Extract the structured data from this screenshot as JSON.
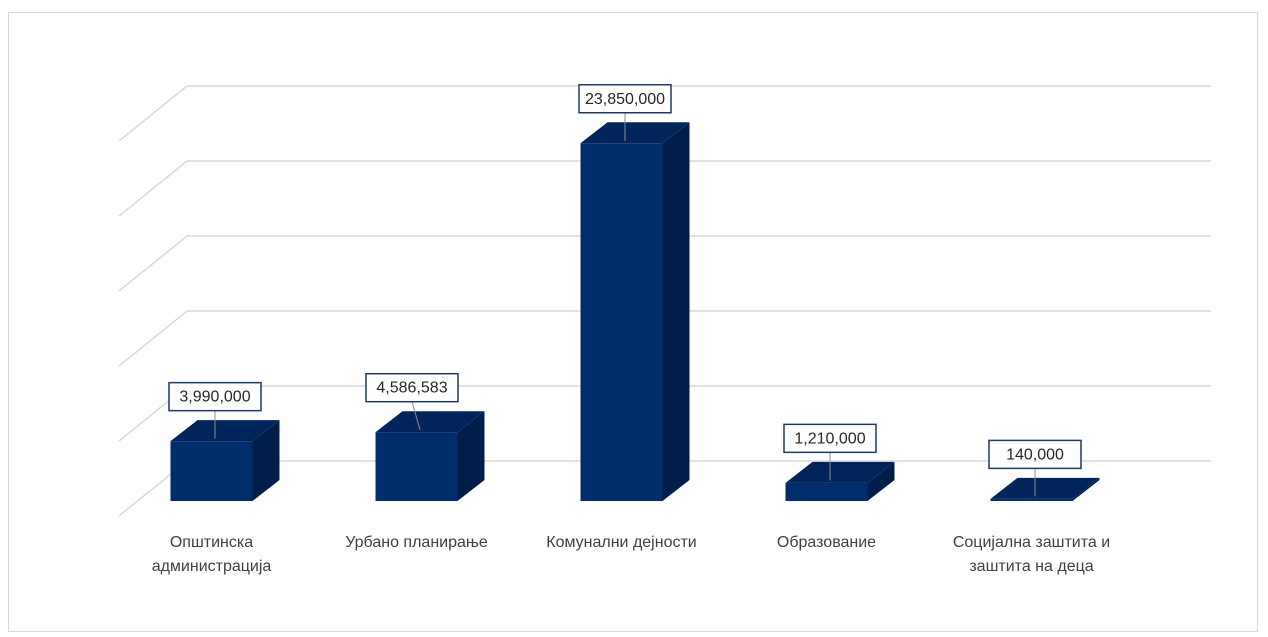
{
  "chart_data": {
    "type": "bar",
    "style": "3d-column",
    "categories": [
      [
        "Општинска",
        "администрација"
      ],
      [
        "Урбано планирање"
      ],
      [
        "Комунални дејности"
      ],
      [
        "Образование"
      ],
      [
        "Социјална заштита и",
        "заштита на деца"
      ]
    ],
    "values": [
      3990000,
      4586583,
      23850000,
      1210000,
      140000
    ],
    "value_labels": [
      "3,990,000",
      "4,586,583",
      "23,850,000",
      "1,210,000",
      "140,000"
    ],
    "ylim": [
      0,
      30000000
    ],
    "gridlines": 6,
    "grid": true,
    "colors": {
      "front": "#002d6b",
      "side": "#001e49",
      "top": "#00255a",
      "grid": "#d9d9d9",
      "label_border": "#1f3864"
    }
  }
}
